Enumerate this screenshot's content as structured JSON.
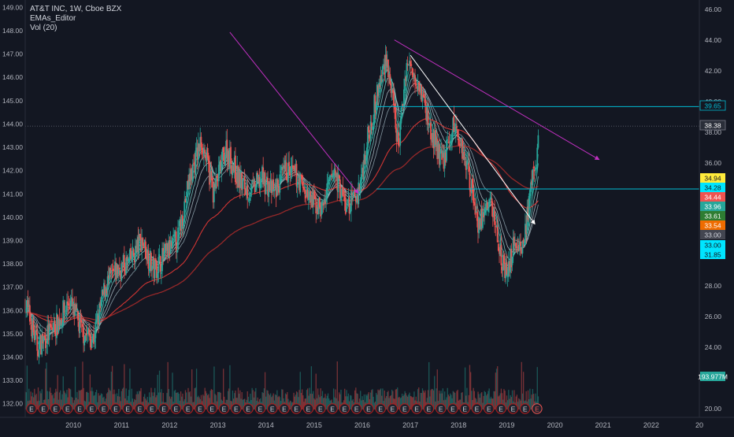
{
  "header": {
    "symbol_line": "AT&T INC, 1W, Cboe BZX",
    "indicator_1": "EMAs_Editor",
    "indicator_2": "Vol (20)"
  },
  "chart_data": {
    "type": "candlestick",
    "title": "AT&T INC, 1W, Cboe BZX",
    "x_ticks": [
      "2010",
      "2011",
      "2012",
      "2013",
      "2014",
      "2015",
      "2016",
      "2017",
      "2018",
      "2019",
      "2020",
      "2021",
      "2022",
      "20"
    ],
    "right_axis": {
      "ticks": [
        "46.00",
        "44.00",
        "42.00",
        "40.00",
        "38.00",
        "36.00",
        "34.00",
        "32.00",
        "30.00",
        "28.00",
        "26.00",
        "24.00",
        "22.00",
        "20.00"
      ],
      "range": [
        19.4,
        46.6
      ]
    },
    "left_axis": {
      "ticks": [
        "149.00",
        "148.00",
        "147.00",
        "146.00",
        "145.00",
        "144.00",
        "143.00",
        "142.00",
        "141.00",
        "140.00",
        "139.00",
        "138.00",
        "137.00",
        "136.00",
        "135.00",
        "134.00",
        "133.00",
        "132.00"
      ],
      "range": [
        131.4,
        149.3
      ]
    },
    "price_path_approx": [
      [
        "2009-01",
        27.0
      ],
      [
        "2009-04",
        24.0
      ],
      [
        "2009-09",
        25.5
      ],
      [
        "2009-12",
        27.0
      ],
      [
        "2010-03",
        25.0
      ],
      [
        "2010-06",
        24.5
      ],
      [
        "2010-09",
        28.0
      ],
      [
        "2010-12",
        29.0
      ],
      [
        "2011-03",
        29.5
      ],
      [
        "2011-06",
        31.0
      ],
      [
        "2011-09",
        29.0
      ],
      [
        "2011-12",
        30.0
      ],
      [
        "2012-03",
        31.0
      ],
      [
        "2012-06",
        35.0
      ],
      [
        "2012-09",
        37.5
      ],
      [
        "2012-12",
        34.0
      ],
      [
        "2013-03",
        37.0
      ],
      [
        "2013-06",
        35.0
      ],
      [
        "2013-09",
        34.0
      ],
      [
        "2013-12",
        35.0
      ],
      [
        "2014-03",
        34.0
      ],
      [
        "2014-06",
        35.5
      ],
      [
        "2014-09",
        35.0
      ],
      [
        "2014-12",
        33.5
      ],
      [
        "2015-03",
        33.0
      ],
      [
        "2015-06",
        35.5
      ],
      [
        "2015-09",
        33.0
      ],
      [
        "2015-12",
        34.0
      ],
      [
        "2016-03",
        38.5
      ],
      [
        "2016-07",
        43.0
      ],
      [
        "2016-10",
        37.0
      ],
      [
        "2016-12",
        42.5
      ],
      [
        "2017-03",
        41.5
      ],
      [
        "2017-06",
        38.0
      ],
      [
        "2017-09",
        36.0
      ],
      [
        "2017-12",
        38.5
      ],
      [
        "2018-03",
        36.0
      ],
      [
        "2018-06",
        32.0
      ],
      [
        "2018-09",
        33.5
      ],
      [
        "2018-12",
        29.5
      ],
      [
        "2019-01",
        28.5
      ],
      [
        "2019-03",
        31.0
      ],
      [
        "2019-05",
        30.5
      ],
      [
        "2019-07",
        34.0
      ],
      [
        "2019-09",
        37.5
      ]
    ],
    "price_labels": [
      {
        "text": "39.65",
        "style": "cyan-outline"
      },
      {
        "text": "38.38",
        "style": "dark"
      },
      {
        "text": "34.94",
        "style": "yellow"
      },
      {
        "text": "34.28",
        "style": "cyan"
      },
      {
        "text": "34.44",
        "style": "red"
      },
      {
        "text": "33.96",
        "style": "teal"
      },
      {
        "text": "33.61",
        "style": "green"
      },
      {
        "text": "33.54",
        "style": "orange"
      },
      {
        "text": "33.00",
        "style": "gray"
      },
      {
        "text": "33.00",
        "style": "cyan"
      },
      {
        "text": "31.85",
        "style": "cyan"
      },
      {
        "text": "193.977M",
        "style": "teal"
      }
    ],
    "horizontal_levels": [
      39.65,
      34.28
    ],
    "trendlines": [
      {
        "from": [
          "2013-04",
          44.5
        ],
        "to": [
          "2015-12",
          34.0
        ],
        "color": "#c030c0"
      },
      {
        "from": [
          "2016-09",
          44.0
        ],
        "to": [
          "2020-12",
          36.2
        ],
        "color": "#c030c0"
      },
      {
        "from": [
          "2017-01",
          43.0
        ],
        "to": [
          "2019-08",
          32.0
        ],
        "color": "#ffffff"
      }
    ],
    "earnings_markers_count": 43,
    "earnings_label": "E",
    "colors": {
      "background": "#131722",
      "up": "#26a69a",
      "down": "#ef5350",
      "axis_text": "#b2b5be",
      "trend_magenta": "#c030c0",
      "level_cyan": "#00bcd4"
    },
    "grid": false
  }
}
